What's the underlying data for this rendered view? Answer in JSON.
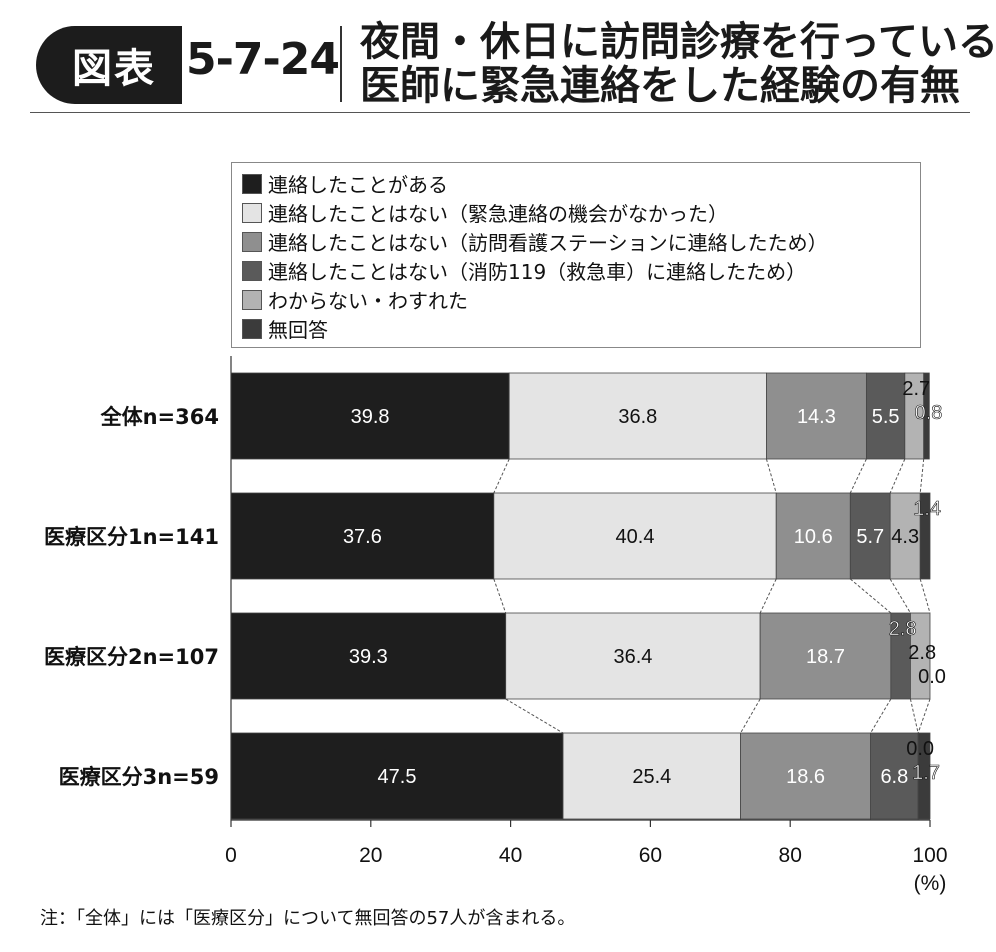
{
  "header": {
    "figure_label": "図表",
    "figure_number": "5-7-24",
    "title_line1": "夜間・休日に訪問診療を行っている",
    "title_line2": "医師に緊急連絡をした経験の有無"
  },
  "note": "注：「全体」には「医療区分」について無回答の57人が含まれる。",
  "colors": {
    "black": "#1e1e1e",
    "light": "#e4e4e4",
    "mid": "#8f8f8f",
    "darkgray": "#5a5a5a",
    "lightgray": "#b3b3b3",
    "charcoal": "#3b3b3b"
  },
  "chart_data": {
    "type": "bar",
    "orientation": "horizontal",
    "stacked": true,
    "categories": [
      "全体n=364",
      "医療区分1n=141",
      "医療区分2n=107",
      "医療区分3n=59"
    ],
    "series": [
      {
        "name": "連絡したことがある",
        "values": [
          39.8,
          37.6,
          39.3,
          47.5
        ],
        "color": "#1e1e1e",
        "label_color": "#ffffff"
      },
      {
        "name": "連絡したことはない（緊急連絡の機会がなかった）",
        "values": [
          36.8,
          40.4,
          36.4,
          25.4
        ],
        "color": "#e4e4e4",
        "label_color": "#111111"
      },
      {
        "name": "連絡したことはない（訪問看護ステーションに連絡したため）",
        "values": [
          14.3,
          10.6,
          18.7,
          18.6
        ],
        "color": "#8f8f8f",
        "label_color": "#ffffff"
      },
      {
        "name": "連絡したことはない（消防119（救急車）に連絡したため）",
        "values": [
          5.5,
          5.7,
          2.8,
          6.8
        ],
        "color": "#5a5a5a",
        "label_color": "#ffffff"
      },
      {
        "name": "わからない・わすれた",
        "values": [
          2.7,
          4.3,
          2.8,
          0.0
        ],
        "color": "#b3b3b3",
        "label_color": "#111111"
      },
      {
        "name": "無回答",
        "values": [
          0.8,
          1.4,
          0.0,
          1.7
        ],
        "color": "#3b3b3b",
        "label_color": "#ffffff"
      }
    ],
    "xlim": [
      0,
      100
    ],
    "xticks": [
      "0",
      "20",
      "40",
      "60",
      "80",
      "100"
    ],
    "xunit": "(%)",
    "legend_position": "top",
    "connector_lines": true
  }
}
